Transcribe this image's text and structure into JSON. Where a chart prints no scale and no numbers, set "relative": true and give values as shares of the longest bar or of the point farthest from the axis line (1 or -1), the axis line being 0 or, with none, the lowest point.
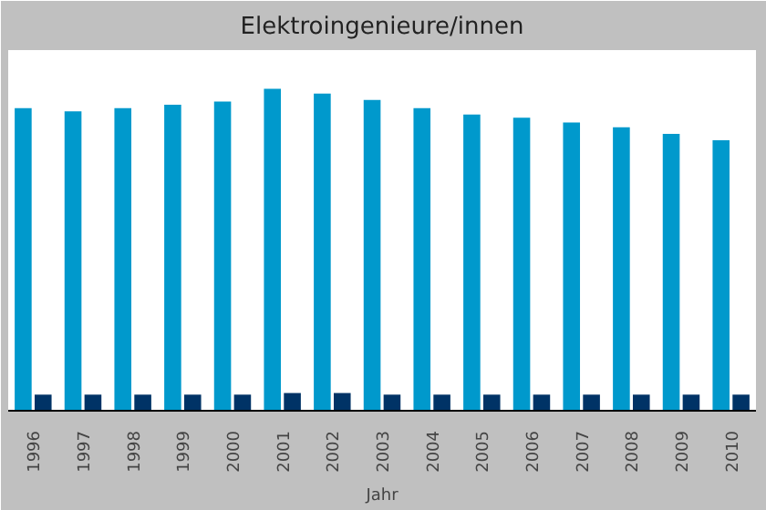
{
  "chart_data": {
    "type": "bar",
    "title": "Elektroingenieure/innen",
    "xlabel": "Jahr",
    "relative": true,
    "categories": [
      "1996",
      "1997",
      "1998",
      "1999",
      "2000",
      "2001",
      "2002",
      "2003",
      "2004",
      "2005",
      "2006",
      "2007",
      "2008",
      "2009",
      "2010"
    ],
    "series": [
      {
        "color": "#0099cc",
        "values": [
          0.94,
          0.93,
          0.94,
          0.95,
          0.96,
          1,
          0.985,
          0.965,
          0.94,
          0.92,
          0.91,
          0.895,
          0.88,
          0.86,
          0.84
        ]
      },
      {
        "color": "#003366",
        "values": [
          0.05,
          0.05,
          0.05,
          0.05,
          0.05,
          0.055,
          0.055,
          0.05,
          0.05,
          0.05,
          0.05,
          0.05,
          0.05,
          0.05,
          0.05
        ]
      }
    ]
  }
}
